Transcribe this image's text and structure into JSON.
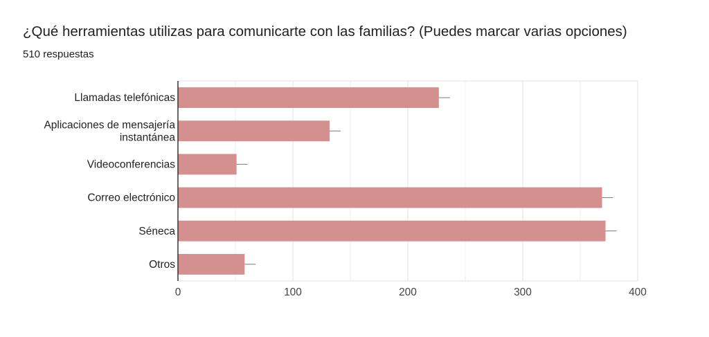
{
  "header": {
    "question": "¿Qué herramientas utilizas para comunicarte con las familias? (Puedes marcar varias opciones)",
    "responses": "510 respuestas"
  },
  "colors": {
    "bar": "#d48f8f",
    "error_bar": "#777777",
    "grid": "#e0e0e0",
    "axis": "#333333"
  },
  "chart_data": {
    "type": "bar",
    "orientation": "horizontal",
    "title": "¿Qué herramientas utilizas para comunicarte con las familias? (Puedes marcar varias opciones)",
    "subtitle": "510 respuestas",
    "categories": [
      [
        "Llamadas telefónicas"
      ],
      [
        "Aplicaciones de mensajería",
        "instantánea"
      ],
      [
        "Videoconferencias"
      ],
      [
        "Correo electrónico"
      ],
      [
        "Séneca"
      ],
      [
        "Otros"
      ]
    ],
    "values": [
      227,
      132,
      51,
      369,
      372,
      58
    ],
    "error_bars": true,
    "xlim": [
      0,
      400
    ],
    "xticks": [
      0,
      100,
      200,
      300,
      400
    ],
    "grid": true,
    "legend": "none"
  }
}
